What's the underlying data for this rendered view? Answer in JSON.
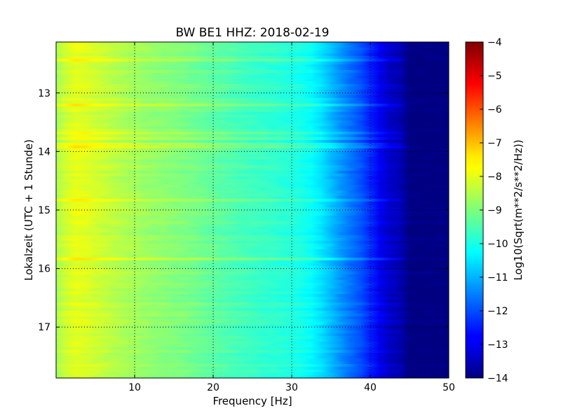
{
  "chart_data": {
    "type": "heatmap",
    "title": "BW BE1 HHZ: 2018-02-19",
    "xlabel": "Frequency [Hz]",
    "ylabel": "Lokalzeit (UTC + 1 Stunde)",
    "colorbar_label": "Log10(Sqrt(m**2/s**2/Hz))",
    "xlim": [
      0,
      50
    ],
    "ylim": [
      12.13,
      17.87
    ],
    "y_inverted": true,
    "grid": true,
    "colormap": "jet",
    "clim": [
      -14,
      -4
    ],
    "x_ticks": [
      10,
      20,
      30,
      40,
      50
    ],
    "x_tick_labels": [
      "10",
      "20",
      "30",
      "40",
      "50"
    ],
    "y_ticks": [
      13,
      14,
      15,
      16,
      17
    ],
    "y_tick_labels": [
      "13",
      "14",
      "15",
      "16",
      "17"
    ],
    "cbar_ticks": [
      -4,
      -5,
      -6,
      -7,
      -8,
      -9,
      -10,
      -11,
      -12,
      -13,
      -14
    ],
    "cbar_tick_labels": [
      "−4",
      "−5",
      "−6",
      "−7",
      "−8",
      "−9",
      "−10",
      "−11",
      "−12",
      "−13",
      "−14"
    ],
    "spectrum_profile": {
      "frequency_hz": [
        0,
        1,
        2,
        3,
        5,
        8,
        12,
        16,
        20,
        24,
        28,
        31,
        33,
        35,
        37,
        39,
        40,
        41,
        42,
        43,
        44,
        45,
        50
      ],
      "log_amplitude": [
        -8.6,
        -8.3,
        -8.0,
        -8.0,
        -8.2,
        -8.5,
        -8.8,
        -9.0,
        -9.3,
        -9.6,
        -9.8,
        -10.0,
        -10.3,
        -10.9,
        -11.5,
        -12.0,
        -12.4,
        -12.8,
        -13.2,
        -13.4,
        -13.5,
        -14.0,
        -14.0
      ]
    },
    "bright_bands_hours": [
      12.44,
      13.2,
      13.68,
      13.79,
      13.9,
      14.83,
      15.83
    ],
    "band_boost_log": 0.45
  }
}
